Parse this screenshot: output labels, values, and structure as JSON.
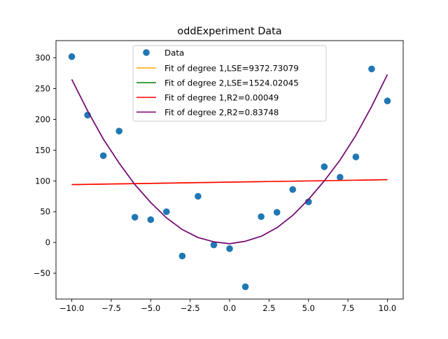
{
  "chart_data": {
    "type": "scatter",
    "title": "oddExperiment Data",
    "xlabel": "",
    "ylabel": "",
    "xlim": [
      -11,
      11
    ],
    "ylim": [
      -92,
      328
    ],
    "xticks": [
      -10.0,
      -7.5,
      -5.0,
      -2.5,
      0.0,
      2.5,
      5.0,
      7.5,
      10.0
    ],
    "xtick_labels": [
      "−10.0",
      "−7.5",
      "−5.0",
      "−2.5",
      "0.0",
      "2.5",
      "5.0",
      "7.5",
      "10.0"
    ],
    "yticks": [
      -50,
      0,
      50,
      100,
      150,
      200,
      250,
      300
    ],
    "ytick_labels": [
      "−50",
      "0",
      "50",
      "100",
      "150",
      "200",
      "250",
      "300"
    ],
    "grid": false,
    "legend_position": "top-center",
    "points": {
      "name": "Data",
      "color": "#1f77b4",
      "x": [
        -10,
        -9,
        -8,
        -7,
        -6,
        -5,
        -4,
        -3,
        -2,
        -1,
        0,
        1,
        2,
        3,
        4,
        5,
        6,
        7,
        8,
        9,
        10
      ],
      "y": [
        302,
        207,
        141,
        181,
        41,
        37,
        50,
        -22,
        75,
        -4,
        -10,
        -72,
        42,
        49,
        86,
        66,
        123,
        106,
        139,
        282,
        230
      ]
    },
    "series": [
      {
        "name": "Fit of degree 1,LSE=9372.73079",
        "color": "#ffa500",
        "x": [
          -10,
          10
        ],
        "y": [
          94,
          102
        ]
      },
      {
        "name": "Fit of degree 2,LSE=1524.02045",
        "color": "#008000",
        "x": [
          -10,
          -9,
          -8,
          -7,
          -6,
          -5,
          -4,
          -3,
          -2,
          -1,
          0,
          1,
          2,
          3,
          4,
          5,
          6,
          7,
          8,
          9,
          10
        ],
        "y": [
          265,
          214,
          168,
          129,
          94,
          65,
          40,
          21,
          8,
          1,
          -2,
          2,
          10,
          24,
          44,
          70,
          100,
          134,
          174,
          221,
          273
        ]
      },
      {
        "name": "Fit of degree 1,R2=0.00049",
        "color": "#ff0000",
        "x": [
          -10,
          10
        ],
        "y": [
          94,
          102
        ]
      },
      {
        "name": "Fit of degree 2,R2=0.83748",
        "color": "#800080",
        "x": [
          -10,
          -9,
          -8,
          -7,
          -6,
          -5,
          -4,
          -3,
          -2,
          -1,
          0,
          1,
          2,
          3,
          4,
          5,
          6,
          7,
          8,
          9,
          10
        ],
        "y": [
          265,
          214,
          168,
          129,
          94,
          65,
          40,
          21,
          8,
          1,
          -2,
          2,
          10,
          24,
          44,
          70,
          100,
          134,
          174,
          221,
          273
        ]
      }
    ]
  }
}
